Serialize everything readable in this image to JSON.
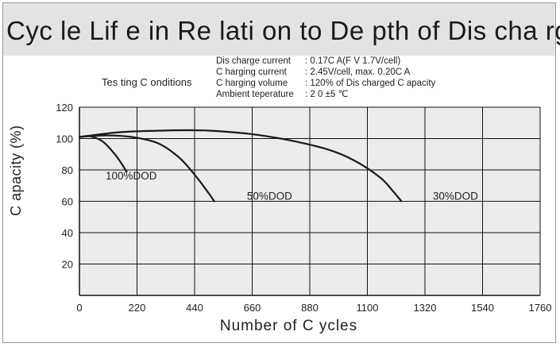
{
  "header": {
    "title": "Cyc le Lif e in Re lati on to De pth of Dis cha rge"
  },
  "conditions": {
    "label": "Tes ting C onditions",
    "rows": [
      {
        "key": "Dis charge current",
        "value": ": 0.17C A(F V 1.7V/cell)"
      },
      {
        "key": "C harging current",
        "value": ": 2.45V/cell, max. 0.20C A"
      },
      {
        "key": "C harging volume",
        "value": ": 120% of Dis charged C apacity"
      },
      {
        "key": "Ambient teperature",
        "value": ": 2 0 ±5 ℃"
      }
    ]
  },
  "chart_data": {
    "type": "line",
    "xlabel": "Number of C ycles",
    "ylabel": "C apacity (%)",
    "xlim": [
      0,
      1760
    ],
    "ylim": [
      0,
      120
    ],
    "x_ticks": [
      0,
      220,
      440,
      660,
      880,
      1100,
      1320,
      1540,
      1760
    ],
    "y_ticks": [
      20,
      40,
      60,
      80,
      100,
      120
    ],
    "grid": true,
    "series": [
      {
        "name": "100%DOD",
        "x": [
          0,
          40,
          90,
          140,
          180
        ],
        "y": [
          101,
          101.5,
          98,
          89,
          79
        ]
      },
      {
        "name": "50%DOD",
        "x": [
          0,
          100,
          200,
          300,
          380,
          440,
          490,
          515
        ],
        "y": [
          101,
          102,
          101,
          97,
          88,
          77,
          66,
          60
        ]
      },
      {
        "name": "30%DOD",
        "x": [
          0,
          150,
          300,
          400,
          500,
          650,
          800,
          950,
          1050,
          1150,
          1200,
          1230
        ],
        "y": [
          101,
          104,
          105,
          105.3,
          105,
          103,
          99,
          93,
          86,
          75,
          66,
          60
        ]
      }
    ],
    "series_labels": [
      {
        "text": "100%DOD",
        "x": 100,
        "y": 74
      },
      {
        "text": "50%DOD",
        "x": 640,
        "y": 61
      },
      {
        "text": "30%DOD",
        "x": 1350,
        "y": 61
      }
    ]
  }
}
